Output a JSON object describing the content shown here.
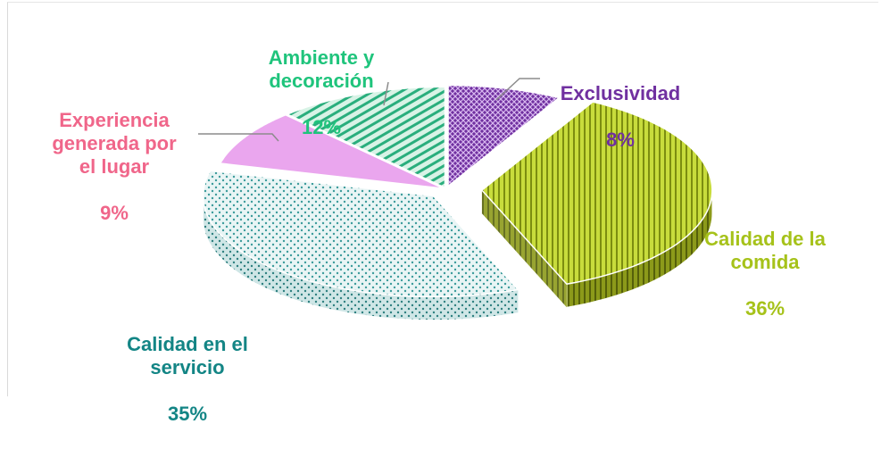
{
  "chart_data": {
    "type": "pie",
    "style": "3d-exploded",
    "slices": [
      {
        "label": "Exclusividad",
        "percent": "8%",
        "value": 8,
        "color": "#7030a0"
      },
      {
        "label": "Calidad de la comida",
        "percent": "36%",
        "value": 36,
        "color": "#b5cc18"
      },
      {
        "label": "Calidad en el servicio",
        "percent": "35%",
        "value": 35,
        "color": "#d6ecec"
      },
      {
        "label": "Experiencia generada por el lugar",
        "percent": "9%",
        "value": 9,
        "color": "#e58fe8"
      },
      {
        "label": "Ambiente y decoración",
        "percent": "12%",
        "value": 12,
        "color": "#27b07f"
      }
    ],
    "label_colors": {
      "Exclusividad": "#7030a0",
      "Calidad de la comida": "#a6c21a",
      "Calidad en el servicio": "#138585",
      "Experiencia generada por el lugar": "#f0668a",
      "Ambiente y decoración": "#1fc47c"
    },
    "labels_text": {
      "Exclusividad": "Exclusividad",
      "Calidad de la comida": "Calidad de la\ncomida",
      "Calidad en el servicio": "Calidad en el\nservicio",
      "Experiencia generada por el lugar": "Experiencia\ngenerada por\nel lugar",
      "Ambiente y decoración": "Ambiente y\ndecoración"
    }
  }
}
